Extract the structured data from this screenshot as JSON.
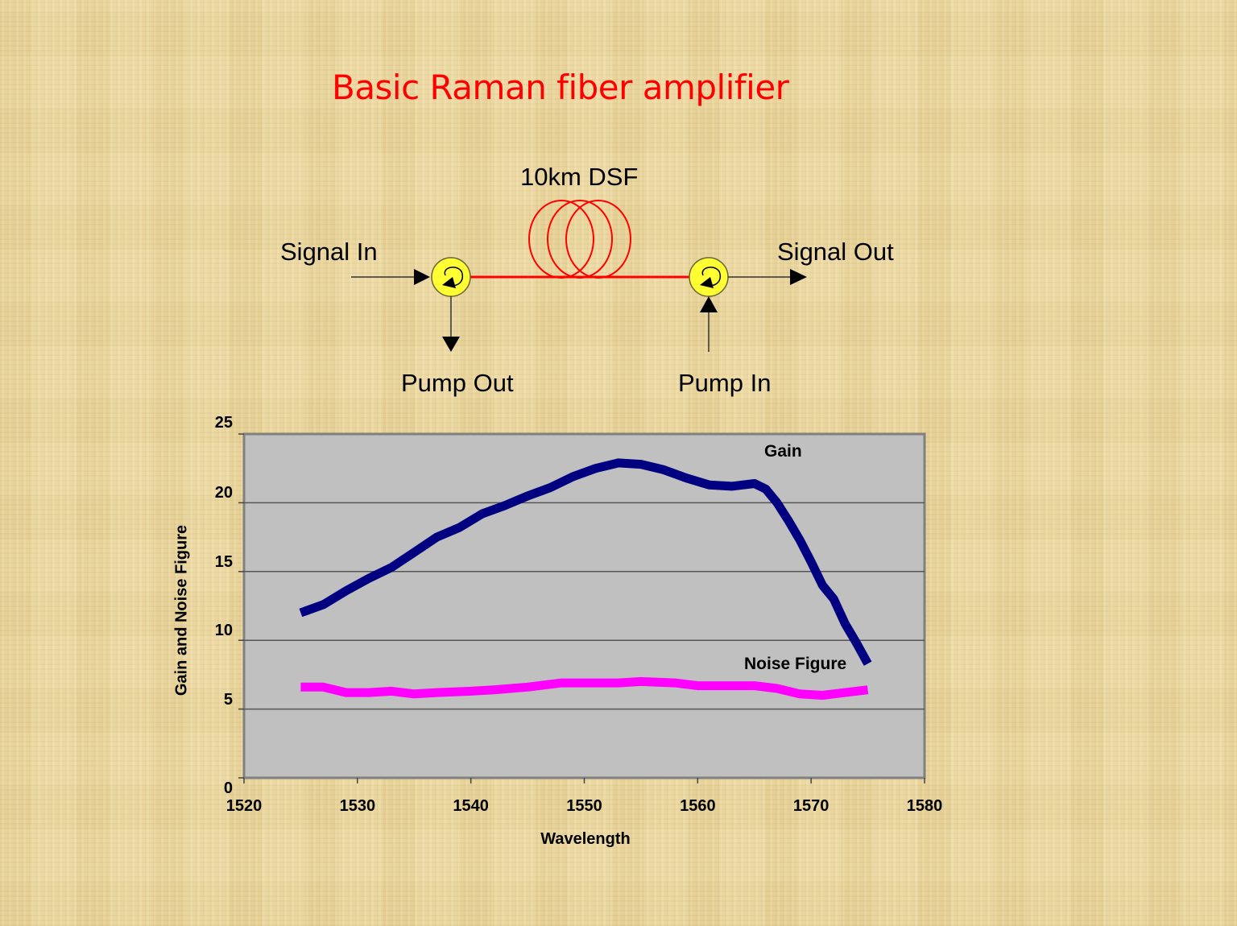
{
  "slide": {
    "title": "Basic Raman fiber amplifier",
    "title_color": "#ff0000",
    "background": "#ecd9a4"
  },
  "diagram": {
    "fiber_label": "10km DSF",
    "signal_in": "Signal In",
    "signal_out": "Signal Out",
    "pump_out": "Pump Out",
    "pump_in": "Pump In",
    "fiber_color": "#ff0000",
    "circulator_color": "#ffff33",
    "components": [
      "input circulator",
      "10km dispersion-shifted fiber coil",
      "output circulator"
    ]
  },
  "chart_data": {
    "type": "line",
    "title": "",
    "xlabel": "Wavelength",
    "ylabel": "Gain and Noise Figure",
    "xlim": [
      1520,
      1580
    ],
    "ylim": [
      0,
      25
    ],
    "xticks": [
      1520,
      1530,
      1540,
      1550,
      1560,
      1570,
      1580
    ],
    "yticks": [
      0,
      5,
      10,
      15,
      20,
      25
    ],
    "grid": "horizontal",
    "plot_background": "#c0c0c0",
    "legend": "inline labels",
    "series": [
      {
        "name": "Gain",
        "color": "#000080",
        "x": [
          1525,
          1527,
          1529,
          1531,
          1533,
          1535,
          1537,
          1539,
          1541,
          1543,
          1545,
          1547,
          1549,
          1551,
          1553,
          1555,
          1557,
          1559,
          1561,
          1563,
          1565,
          1566,
          1567,
          1568,
          1569,
          1570,
          1571,
          1572,
          1573,
          1574,
          1575
        ],
        "values": [
          12.0,
          12.6,
          13.6,
          14.5,
          15.3,
          16.4,
          17.5,
          18.2,
          19.2,
          19.8,
          20.5,
          21.1,
          21.9,
          22.5,
          22.9,
          22.8,
          22.4,
          21.8,
          21.3,
          21.2,
          21.4,
          21.0,
          20.0,
          18.7,
          17.3,
          15.7,
          14.0,
          13.0,
          11.2,
          9.8,
          8.3
        ]
      },
      {
        "name": "Noise Figure",
        "color": "#ff00ff",
        "x": [
          1525,
          1527,
          1529,
          1531,
          1533,
          1535,
          1537,
          1540,
          1542,
          1545,
          1548,
          1550,
          1553,
          1555,
          1558,
          1560,
          1563,
          1565,
          1567,
          1569,
          1571,
          1573,
          1575
        ],
        "values": [
          6.6,
          6.6,
          6.2,
          6.2,
          6.3,
          6.1,
          6.2,
          6.3,
          6.4,
          6.6,
          6.9,
          6.9,
          6.9,
          7.0,
          6.9,
          6.7,
          6.7,
          6.7,
          6.5,
          6.1,
          6.0,
          6.2,
          6.4
        ]
      }
    ],
    "annotations": [
      "Gain",
      "Noise Figure"
    ]
  }
}
